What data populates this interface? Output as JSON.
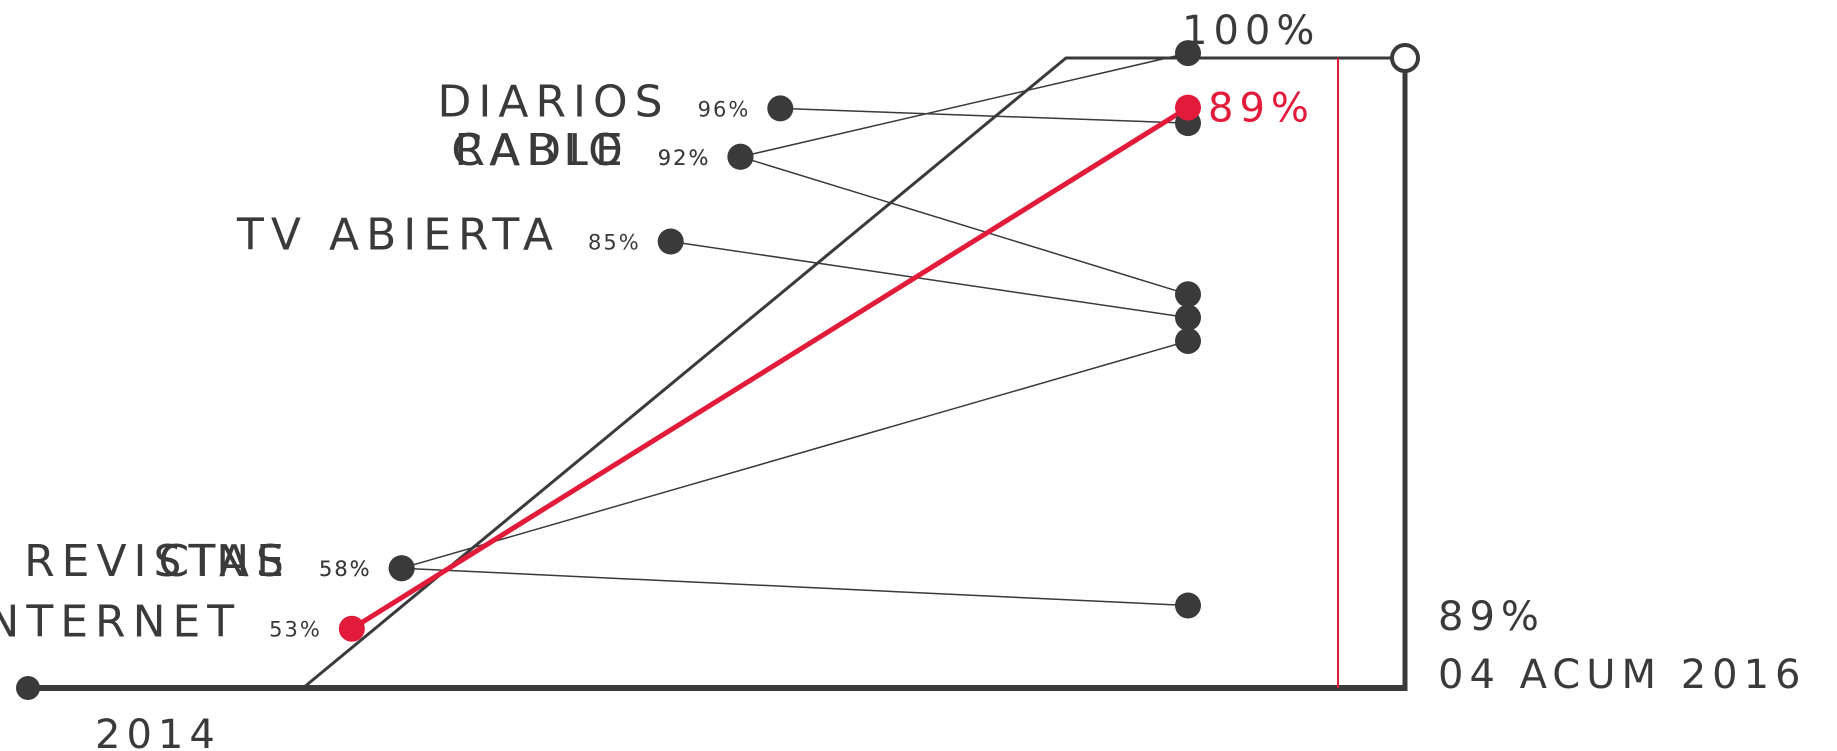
{
  "chart_data": {
    "type": "line",
    "start_label": "2014",
    "top_label": "100%",
    "end_label_value": "89%",
    "end_label_period": "04 ACUM 2016",
    "highlight_series": "INTERNET",
    "colors": {
      "highlight": "#e31b3a",
      "base": "#3a3a3a"
    },
    "series": [
      {
        "name": "DIARIOS",
        "start_label": "96%",
        "start": 96,
        "end": 87
      },
      {
        "name": "RADIO",
        "start_label": "92%",
        "start": 92,
        "end": 65
      },
      {
        "name": "CABLE",
        "start_label": "92%",
        "start": 92,
        "end": 96
      },
      {
        "name": "TV ABIERTA",
        "start_label": "85%",
        "start": 85,
        "end": 62
      },
      {
        "name": "CINE",
        "start_label": "58%",
        "start": 58,
        "end": 59
      },
      {
        "name": "REVISTAS",
        "start_label": "58%",
        "start": 58,
        "end": 25
      },
      {
        "name": "INTERNET",
        "start_label": "53%",
        "start": 53,
        "end": 89,
        "end_label": "89%"
      }
    ]
  }
}
